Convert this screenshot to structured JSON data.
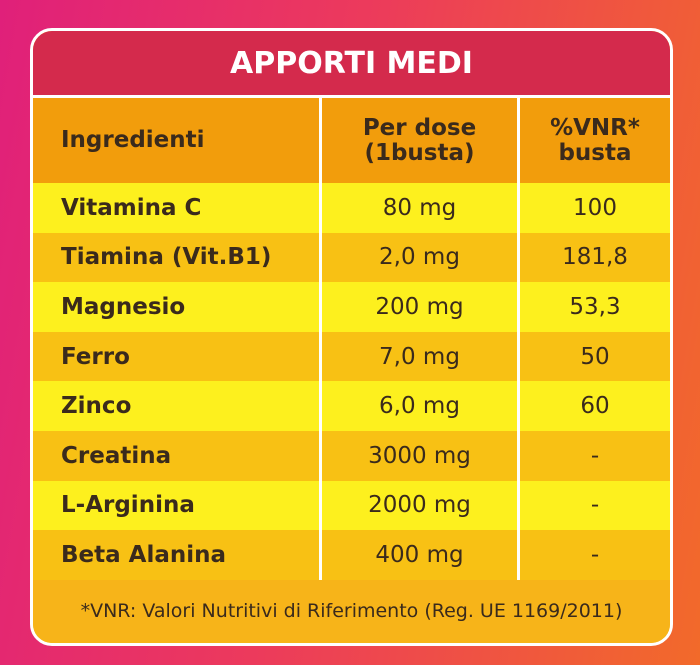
{
  "title": "APPORTI MEDI",
  "table": {
    "header": [
      "Ingredienti",
      "Per dose\n(1busta)",
      "%VNR*\nbusta"
    ],
    "rows": [
      [
        "Vitamina C",
        "80 mg",
        "100"
      ],
      [
        "Tiamina (Vit.B1)",
        "2,0 mg",
        "181,8"
      ],
      [
        "Magnesio",
        "200 mg",
        "53,3"
      ],
      [
        "Ferro",
        "7,0 mg",
        "50"
      ],
      [
        "Zinco",
        "6,0 mg",
        "60"
      ],
      [
        "Creatina",
        "3000 mg",
        "-"
      ],
      [
        "L-Arginina",
        "2000 mg",
        "-"
      ],
      [
        "Beta Alanina",
        "400 mg",
        "-"
      ]
    ]
  },
  "footnote": "*VNR: Valori Nutritivi di Riferimento (Reg. UE 1169/2011)"
}
